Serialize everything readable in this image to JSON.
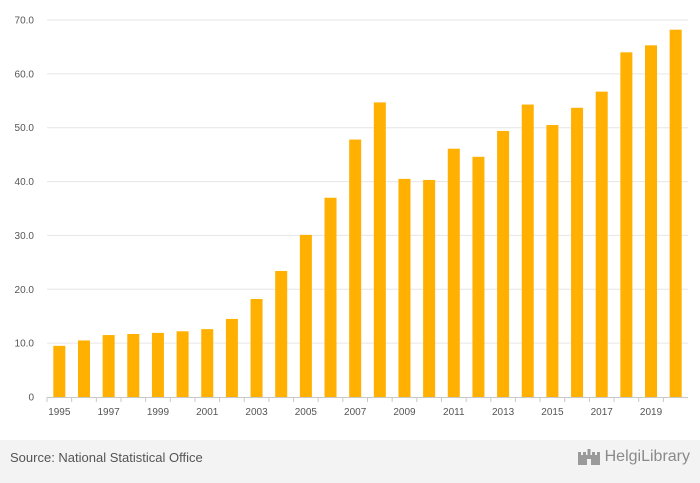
{
  "chart_data": {
    "type": "bar",
    "title": "",
    "xlabel": "",
    "ylabel": "",
    "ylim": [
      0,
      70
    ],
    "yticks": [
      "0",
      "10.0",
      "20.0",
      "30.0",
      "40.0",
      "50.0",
      "60.0",
      "70.0"
    ],
    "ytick_values": [
      0,
      10,
      20,
      30,
      40,
      50,
      60,
      70
    ],
    "categories": [
      "1995",
      "1996",
      "1997",
      "1998",
      "1999",
      "2000",
      "2001",
      "2002",
      "2003",
      "2004",
      "2005",
      "2006",
      "2007",
      "2008",
      "2009",
      "2010",
      "2011",
      "2012",
      "2013",
      "2014",
      "2015",
      "2016",
      "2017",
      "2018",
      "2019",
      "2020"
    ],
    "x_tick_labels": [
      "1995",
      "1997",
      "1999",
      "2001",
      "2003",
      "2005",
      "2007",
      "2009",
      "2011",
      "2013",
      "2015",
      "2017",
      "2019"
    ],
    "values": [
      9.5,
      10.5,
      11.5,
      11.7,
      11.9,
      12.2,
      12.6,
      14.5,
      18.2,
      23.4,
      30.1,
      37.0,
      47.8,
      54.7,
      40.5,
      40.3,
      46.1,
      44.6,
      49.4,
      54.3,
      50.5,
      53.7,
      56.7,
      64.0,
      65.3,
      68.2
    ],
    "grid": true,
    "bar_color": "#ffb000"
  },
  "footer": {
    "source": "Source: National Statistical Office",
    "brand_name": "HelgiLibrary",
    "brand_icon": "helgi-castle-icon"
  },
  "colors": {
    "bar": "#ffb000",
    "grid": "#e6e6e6",
    "footer_bg": "#f3f3f3"
  }
}
